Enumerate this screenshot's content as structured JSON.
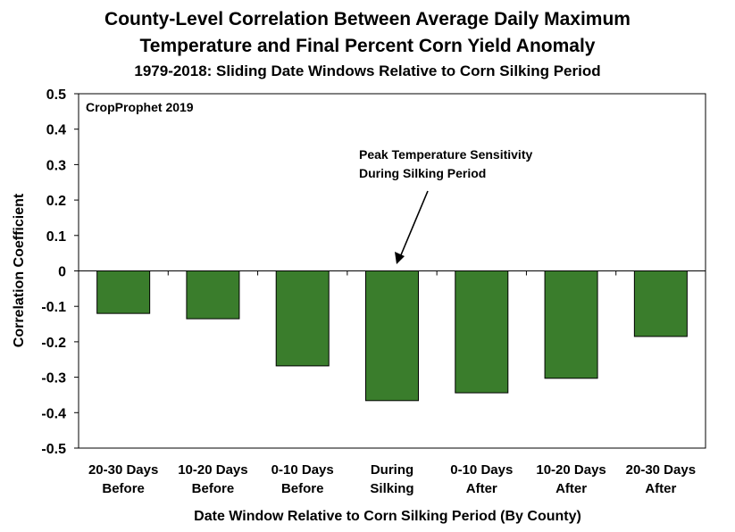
{
  "chart_data": {
    "type": "bar",
    "title": "County-Level Correlation Between Average Daily Maximum",
    "title_line2": "Temperature and Final Percent Corn Yield Anomaly",
    "subtitle": "1979-2018: Sliding Date Windows Relative to Corn Silking Period",
    "xlabel": "Date Window Relative to Corn Silking Period (By County)",
    "ylabel": "Correlation Coefficient",
    "ylim": [
      -0.5,
      0.5
    ],
    "yticks": [
      "0.5",
      "0.4",
      "0.3",
      "0.2",
      "0.1",
      "0",
      "-0.1",
      "-0.2",
      "-0.3",
      "-0.4",
      "-0.5"
    ],
    "categories": [
      [
        "20-30 Days",
        "Before"
      ],
      [
        "10-20 Days",
        "Before"
      ],
      [
        "0-10 Days",
        "Before"
      ],
      [
        "During",
        "Silking"
      ],
      [
        "0-10 Days",
        "After"
      ],
      [
        "10-20 Days",
        "After"
      ],
      [
        "20-30 Days",
        "After"
      ]
    ],
    "values": [
      -0.12,
      -0.135,
      -0.268,
      -0.366,
      -0.344,
      -0.303,
      -0.185
    ],
    "bar_color": "#3a7d2c",
    "grid": false,
    "watermark": "CropProphet 2019",
    "annotation": [
      "Peak Temperature Sensitivity",
      "During Silking Period"
    ]
  }
}
